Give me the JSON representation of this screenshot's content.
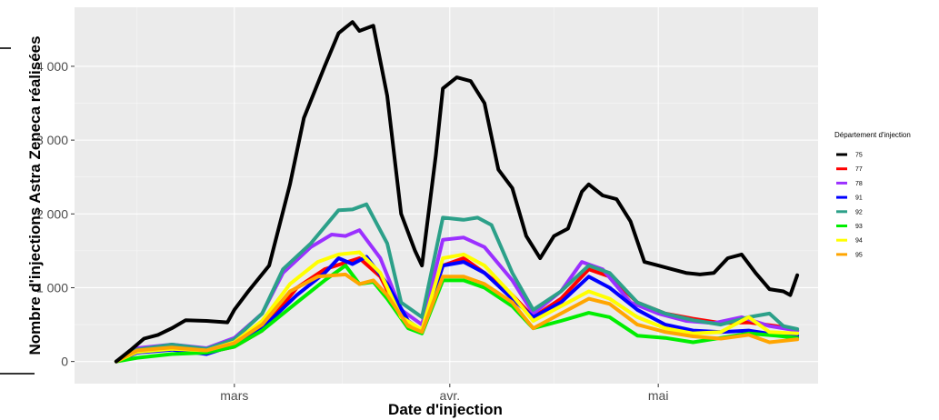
{
  "chart_data": {
    "type": "line",
    "xlabel": "Date d'injection",
    "ylabel": "Nombre d'injections Astra Zeneca réalisées",
    "x_range": [
      "2021-02-06",
      "2021-05-24"
    ],
    "ylim": [
      -300,
      4800
    ],
    "x_ticks": [
      {
        "date": "2021-03-01",
        "label": "mars"
      },
      {
        "date": "2021-04-01",
        "label": "avr."
      },
      {
        "date": "2021-05-01",
        "label": "mai"
      }
    ],
    "y_ticks": [
      {
        "value": 0,
        "label": "0"
      },
      {
        "value": 1000,
        "label": "1 000"
      },
      {
        "value": 2000,
        "label": "2 000"
      },
      {
        "value": 3000,
        "label": "3 000"
      },
      {
        "value": 4000,
        "label": "4 000"
      }
    ],
    "grid": true,
    "background": "#ebebeb",
    "legend": {
      "title": "Département d'injection",
      "position": "right"
    },
    "series": [
      {
        "name": "75",
        "color": "#000000",
        "points": [
          [
            "2021-02-12",
            0
          ],
          [
            "2021-02-14",
            150
          ],
          [
            "2021-02-16",
            310
          ],
          [
            "2021-02-18",
            360
          ],
          [
            "2021-02-20",
            450
          ],
          [
            "2021-02-22",
            560
          ],
          [
            "2021-02-25",
            550
          ],
          [
            "2021-02-28",
            530
          ],
          [
            "2021-03-01",
            700
          ],
          [
            "2021-03-03",
            950
          ],
          [
            "2021-03-06",
            1300
          ],
          [
            "2021-03-09",
            2400
          ],
          [
            "2021-03-11",
            3300
          ],
          [
            "2021-03-14",
            4000
          ],
          [
            "2021-03-16",
            4450
          ],
          [
            "2021-03-18",
            4600
          ],
          [
            "2021-03-19",
            4480
          ],
          [
            "2021-03-21",
            4550
          ],
          [
            "2021-03-23",
            3600
          ],
          [
            "2021-03-25",
            2000
          ],
          [
            "2021-03-27",
            1500
          ],
          [
            "2021-03-28",
            1300
          ],
          [
            "2021-03-30",
            2800
          ],
          [
            "2021-03-31",
            3700
          ],
          [
            "2021-04-02",
            3850
          ],
          [
            "2021-04-04",
            3800
          ],
          [
            "2021-04-06",
            3500
          ],
          [
            "2021-04-08",
            2600
          ],
          [
            "2021-04-10",
            2350
          ],
          [
            "2021-04-12",
            1700
          ],
          [
            "2021-04-14",
            1400
          ],
          [
            "2021-04-16",
            1700
          ],
          [
            "2021-04-18",
            1800
          ],
          [
            "2021-04-20",
            2300
          ],
          [
            "2021-04-21",
            2400
          ],
          [
            "2021-04-23",
            2250
          ],
          [
            "2021-04-25",
            2200
          ],
          [
            "2021-04-27",
            1900
          ],
          [
            "2021-04-29",
            1350
          ],
          [
            "2021-05-01",
            1300
          ],
          [
            "2021-05-03",
            1250
          ],
          [
            "2021-05-05",
            1200
          ],
          [
            "2021-05-07",
            1180
          ],
          [
            "2021-05-09",
            1200
          ],
          [
            "2021-05-11",
            1400
          ],
          [
            "2021-05-13",
            1450
          ],
          [
            "2021-05-15",
            1200
          ],
          [
            "2021-05-17",
            980
          ],
          [
            "2021-05-19",
            950
          ],
          [
            "2021-05-20",
            900
          ],
          [
            "2021-05-21",
            1170
          ]
        ]
      },
      {
        "name": "77",
        "color": "#ff0000",
        "points": [
          [
            "2021-02-12",
            0
          ],
          [
            "2021-02-15",
            150
          ],
          [
            "2021-02-20",
            180
          ],
          [
            "2021-02-25",
            120
          ],
          [
            "2021-03-01",
            200
          ],
          [
            "2021-03-05",
            420
          ],
          [
            "2021-03-10",
            1000
          ],
          [
            "2021-03-14",
            1250
          ],
          [
            "2021-03-19",
            1400
          ],
          [
            "2021-03-22",
            1150
          ],
          [
            "2021-03-25",
            600
          ],
          [
            "2021-03-28",
            420
          ],
          [
            "2021-03-31",
            1300
          ],
          [
            "2021-04-03",
            1400
          ],
          [
            "2021-04-06",
            1200
          ],
          [
            "2021-04-10",
            900
          ],
          [
            "2021-04-13",
            600
          ],
          [
            "2021-04-17",
            850
          ],
          [
            "2021-04-21",
            1250
          ],
          [
            "2021-04-24",
            1150
          ],
          [
            "2021-04-28",
            800
          ],
          [
            "2021-05-02",
            650
          ],
          [
            "2021-05-06",
            580
          ],
          [
            "2021-05-10",
            520
          ],
          [
            "2021-05-14",
            530
          ],
          [
            "2021-05-18",
            480
          ],
          [
            "2021-05-21",
            420
          ]
        ]
      },
      {
        "name": "78",
        "color": "#9b30ff",
        "points": [
          [
            "2021-02-12",
            0
          ],
          [
            "2021-02-15",
            180
          ],
          [
            "2021-02-20",
            230
          ],
          [
            "2021-02-25",
            180
          ],
          [
            "2021-03-01",
            320
          ],
          [
            "2021-03-05",
            650
          ],
          [
            "2021-03-08",
            1200
          ],
          [
            "2021-03-12",
            1550
          ],
          [
            "2021-03-15",
            1720
          ],
          [
            "2021-03-17",
            1700
          ],
          [
            "2021-03-19",
            1780
          ],
          [
            "2021-03-22",
            1400
          ],
          [
            "2021-03-25",
            700
          ],
          [
            "2021-03-28",
            500
          ],
          [
            "2021-03-31",
            1650
          ],
          [
            "2021-04-03",
            1680
          ],
          [
            "2021-04-06",
            1550
          ],
          [
            "2021-04-10",
            1100
          ],
          [
            "2021-04-13",
            650
          ],
          [
            "2021-04-17",
            950
          ],
          [
            "2021-04-20",
            1350
          ],
          [
            "2021-04-23",
            1250
          ],
          [
            "2021-04-27",
            800
          ],
          [
            "2021-05-01",
            650
          ],
          [
            "2021-05-05",
            550
          ],
          [
            "2021-05-09",
            520
          ],
          [
            "2021-05-13",
            600
          ],
          [
            "2021-05-17",
            480
          ],
          [
            "2021-05-21",
            420
          ]
        ]
      },
      {
        "name": "91",
        "color": "#0000ff",
        "points": [
          [
            "2021-02-12",
            0
          ],
          [
            "2021-02-15",
            120
          ],
          [
            "2021-02-20",
            160
          ],
          [
            "2021-02-25",
            100
          ],
          [
            "2021-03-01",
            220
          ],
          [
            "2021-03-05",
            450
          ],
          [
            "2021-03-10",
            900
          ],
          [
            "2021-03-14",
            1200
          ],
          [
            "2021-03-16",
            1400
          ],
          [
            "2021-03-18",
            1320
          ],
          [
            "2021-03-20",
            1420
          ],
          [
            "2021-03-23",
            1050
          ],
          [
            "2021-03-26",
            550
          ],
          [
            "2021-03-28",
            420
          ],
          [
            "2021-03-31",
            1300
          ],
          [
            "2021-04-03",
            1350
          ],
          [
            "2021-04-06",
            1200
          ],
          [
            "2021-04-10",
            850
          ],
          [
            "2021-04-13",
            600
          ],
          [
            "2021-04-17",
            800
          ],
          [
            "2021-04-21",
            1150
          ],
          [
            "2021-04-24",
            1000
          ],
          [
            "2021-04-28",
            700
          ],
          [
            "2021-05-02",
            500
          ],
          [
            "2021-05-06",
            420
          ],
          [
            "2021-05-10",
            400
          ],
          [
            "2021-05-14",
            420
          ],
          [
            "2021-05-18",
            360
          ],
          [
            "2021-05-21",
            350
          ]
        ]
      },
      {
        "name": "92",
        "color": "#2ca089",
        "points": [
          [
            "2021-02-12",
            0
          ],
          [
            "2021-02-15",
            160
          ],
          [
            "2021-02-20",
            230
          ],
          [
            "2021-02-25",
            170
          ],
          [
            "2021-03-01",
            300
          ],
          [
            "2021-03-05",
            650
          ],
          [
            "2021-03-08",
            1250
          ],
          [
            "2021-03-12",
            1600
          ],
          [
            "2021-03-16",
            2050
          ],
          [
            "2021-03-18",
            2060
          ],
          [
            "2021-03-20",
            2130
          ],
          [
            "2021-03-23",
            1600
          ],
          [
            "2021-03-25",
            800
          ],
          [
            "2021-03-28",
            600
          ],
          [
            "2021-03-31",
            1950
          ],
          [
            "2021-04-03",
            1920
          ],
          [
            "2021-04-05",
            1950
          ],
          [
            "2021-04-07",
            1850
          ],
          [
            "2021-04-10",
            1200
          ],
          [
            "2021-04-13",
            700
          ],
          [
            "2021-04-17",
            950
          ],
          [
            "2021-04-21",
            1300
          ],
          [
            "2021-04-24",
            1200
          ],
          [
            "2021-04-28",
            800
          ],
          [
            "2021-05-02",
            650
          ],
          [
            "2021-05-06",
            560
          ],
          [
            "2021-05-10",
            500
          ],
          [
            "2021-05-14",
            600
          ],
          [
            "2021-05-17",
            650
          ],
          [
            "2021-05-19",
            480
          ],
          [
            "2021-05-21",
            440
          ]
        ]
      },
      {
        "name": "93",
        "color": "#00ee00",
        "points": [
          [
            "2021-02-12",
            0
          ],
          [
            "2021-02-15",
            50
          ],
          [
            "2021-02-20",
            100
          ],
          [
            "2021-02-25",
            120
          ],
          [
            "2021-03-01",
            200
          ],
          [
            "2021-03-05",
            420
          ],
          [
            "2021-03-10",
            800
          ],
          [
            "2021-03-14",
            1100
          ],
          [
            "2021-03-17",
            1300
          ],
          [
            "2021-03-19",
            1050
          ],
          [
            "2021-03-21",
            1080
          ],
          [
            "2021-03-23",
            850
          ],
          [
            "2021-03-26",
            450
          ],
          [
            "2021-03-28",
            380
          ],
          [
            "2021-03-31",
            1100
          ],
          [
            "2021-04-03",
            1100
          ],
          [
            "2021-04-06",
            1000
          ],
          [
            "2021-04-10",
            750
          ],
          [
            "2021-04-13",
            450
          ],
          [
            "2021-04-17",
            550
          ],
          [
            "2021-04-21",
            660
          ],
          [
            "2021-04-24",
            600
          ],
          [
            "2021-04-28",
            350
          ],
          [
            "2021-05-02",
            320
          ],
          [
            "2021-05-06",
            260
          ],
          [
            "2021-05-10",
            320
          ],
          [
            "2021-05-14",
            380
          ],
          [
            "2021-05-18",
            350
          ],
          [
            "2021-05-21",
            320
          ]
        ]
      },
      {
        "name": "94",
        "color": "#ffff00",
        "points": [
          [
            "2021-02-12",
            0
          ],
          [
            "2021-02-15",
            130
          ],
          [
            "2021-02-20",
            170
          ],
          [
            "2021-02-25",
            150
          ],
          [
            "2021-03-01",
            260
          ],
          [
            "2021-03-05",
            550
          ],
          [
            "2021-03-09",
            1050
          ],
          [
            "2021-03-13",
            1350
          ],
          [
            "2021-03-16",
            1450
          ],
          [
            "2021-03-19",
            1480
          ],
          [
            "2021-03-22",
            1200
          ],
          [
            "2021-03-25",
            600
          ],
          [
            "2021-03-28",
            430
          ],
          [
            "2021-03-31",
            1400
          ],
          [
            "2021-04-03",
            1450
          ],
          [
            "2021-04-06",
            1300
          ],
          [
            "2021-04-10",
            900
          ],
          [
            "2021-04-13",
            550
          ],
          [
            "2021-04-17",
            750
          ],
          [
            "2021-04-21",
            950
          ],
          [
            "2021-04-24",
            850
          ],
          [
            "2021-04-28",
            600
          ],
          [
            "2021-05-02",
            450
          ],
          [
            "2021-05-06",
            380
          ],
          [
            "2021-05-10",
            400
          ],
          [
            "2021-05-14",
            600
          ],
          [
            "2021-05-17",
            400
          ],
          [
            "2021-05-21",
            380
          ]
        ]
      },
      {
        "name": "95",
        "color": "#ffa500",
        "points": [
          [
            "2021-02-12",
            0
          ],
          [
            "2021-02-15",
            150
          ],
          [
            "2021-02-20",
            190
          ],
          [
            "2021-02-25",
            150
          ],
          [
            "2021-03-01",
            250
          ],
          [
            "2021-03-05",
            500
          ],
          [
            "2021-03-09",
            950
          ],
          [
            "2021-03-13",
            1150
          ],
          [
            "2021-03-17",
            1180
          ],
          [
            "2021-03-19",
            1050
          ],
          [
            "2021-03-21",
            1100
          ],
          [
            "2021-03-23",
            900
          ],
          [
            "2021-03-26",
            480
          ],
          [
            "2021-03-28",
            400
          ],
          [
            "2021-03-31",
            1150
          ],
          [
            "2021-04-03",
            1150
          ],
          [
            "2021-04-06",
            1050
          ],
          [
            "2021-04-10",
            800
          ],
          [
            "2021-04-13",
            450
          ],
          [
            "2021-04-17",
            650
          ],
          [
            "2021-04-21",
            850
          ],
          [
            "2021-04-24",
            780
          ],
          [
            "2021-04-28",
            500
          ],
          [
            "2021-05-02",
            400
          ],
          [
            "2021-05-06",
            340
          ],
          [
            "2021-05-10",
            310
          ],
          [
            "2021-05-14",
            360
          ],
          [
            "2021-05-17",
            260
          ],
          [
            "2021-05-21",
            300
          ]
        ]
      }
    ]
  }
}
